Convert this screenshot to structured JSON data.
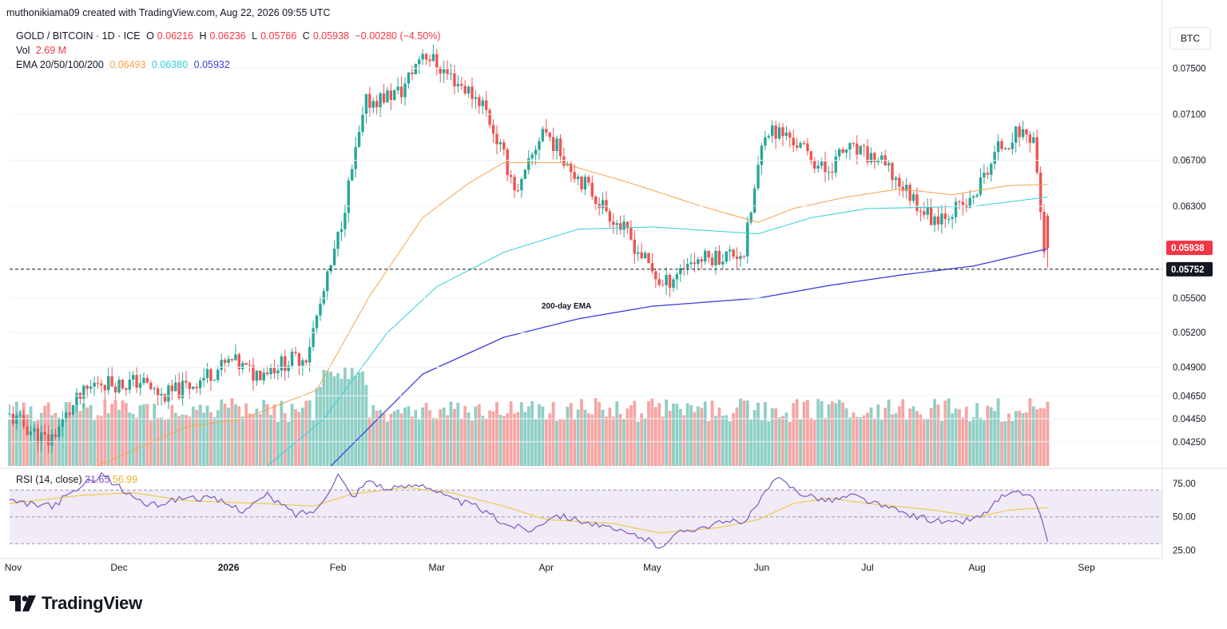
{
  "header": {
    "attribution": "muthonikiama09 created with TradingView.com, Aug 22, 2026 09:55 UTC"
  },
  "legend": {
    "symbol": "GOLD / BITCOIN · 1D · ICE",
    "o_label": "O",
    "o_value": "0.06216",
    "h_label": "H",
    "h_value": "0.06236",
    "l_label": "L",
    "l_value": "0.05766",
    "c_label": "C",
    "c_value": "0.05938",
    "change": "−0.00280 (−4.50%)",
    "vol_label": "Vol",
    "vol_value": "2.69 M",
    "ema_label": "EMA 20/50/100/200",
    "ema_50": "0.06493",
    "ema_100": "0.06380",
    "ema_200": "0.05932"
  },
  "currency_button": "BTC",
  "rsi_legend": {
    "label": "RSI (14, close)",
    "rsi": "31.65",
    "ma": "56.99"
  },
  "brand": {
    "name": "TradingView"
  },
  "colors": {
    "up": "#26a69a",
    "down": "#ef5350",
    "vol_up": "#8fcfc5",
    "vol_down": "#f5a6a4",
    "ema50": "#f7a24a",
    "ema100": "#2fd0d9",
    "ema200": "#3c3de0",
    "rsi": "#7e57c2",
    "rsi_ma": "#f2c94c"
  },
  "chart_data": {
    "type": "candlestick",
    "y_unit": "BTC",
    "ylim": [
      0.0404,
      0.079
    ],
    "y_ticks": [
      "0.07500",
      "0.07100",
      "0.06700",
      "0.06300",
      "0.05500",
      "0.05200",
      "0.04900",
      "0.04650",
      "0.04450",
      "0.04250"
    ],
    "price_labels": {
      "last": "0.05938",
      "crosshair": "0.05752"
    },
    "x_ticks": [
      "Nov",
      "Dec",
      "2026",
      "Feb",
      "Mar",
      "Apr",
      "May",
      "Jun",
      "Jul",
      "Aug",
      "Sep"
    ],
    "annotation": "200-day EMA",
    "series": [
      {
        "name": "EMA 50",
        "waypoints": [
          [
            "2025-11-25",
            0.0404
          ],
          [
            "2025-12-20",
            0.0438
          ],
          [
            "2026-01-05",
            0.0445
          ],
          [
            "2026-01-26",
            0.047
          ],
          [
            "2026-02-10",
            0.0552
          ],
          [
            "2026-02-25",
            0.062
          ],
          [
            "2026-03-10",
            0.065
          ],
          [
            "2026-03-20",
            0.0668
          ],
          [
            "2026-04-05",
            0.0668
          ],
          [
            "2026-04-25",
            0.065
          ],
          [
            "2026-05-15",
            0.063
          ],
          [
            "2026-05-31",
            0.0616
          ],
          [
            "2026-06-10",
            0.0628
          ],
          [
            "2026-06-25",
            0.0638
          ],
          [
            "2026-07-10",
            0.0645
          ],
          [
            "2026-07-25",
            0.064
          ],
          [
            "2026-08-10",
            0.0648
          ],
          [
            "2026-08-21",
            0.0649
          ]
        ]
      },
      {
        "name": "EMA 100",
        "waypoints": [
          [
            "2026-01-12",
            0.0404
          ],
          [
            "2026-01-28",
            0.0445
          ],
          [
            "2026-02-15",
            0.052
          ],
          [
            "2026-03-01",
            0.056
          ],
          [
            "2026-03-20",
            0.059
          ],
          [
            "2026-04-10",
            0.061
          ],
          [
            "2026-05-01",
            0.0612
          ],
          [
            "2026-05-31",
            0.0606
          ],
          [
            "2026-06-15",
            0.062
          ],
          [
            "2026-07-01",
            0.0628
          ],
          [
            "2026-07-31",
            0.063
          ],
          [
            "2026-08-21",
            0.0638
          ]
        ]
      },
      {
        "name": "EMA 200",
        "waypoints": [
          [
            "2026-01-30",
            0.0404
          ],
          [
            "2026-02-25",
            0.0484
          ],
          [
            "2026-03-20",
            0.0516
          ],
          [
            "2026-04-10",
            0.0532
          ],
          [
            "2026-05-01",
            0.0543
          ],
          [
            "2026-05-31",
            0.055
          ],
          [
            "2026-06-20",
            0.0561
          ],
          [
            "2026-07-10",
            0.057
          ],
          [
            "2026-07-31",
            0.0578
          ],
          [
            "2026-08-21",
            0.0593
          ]
        ]
      }
    ],
    "candle_path": [
      [
        "2025-10-31",
        0.0449
      ],
      [
        "2025-11-12",
        0.0425
      ],
      [
        "2025-11-20",
        0.046
      ],
      [
        "2025-11-26",
        0.0478
      ],
      [
        "2025-12-03",
        0.0475
      ],
      [
        "2025-12-08",
        0.0478
      ],
      [
        "2025-12-14",
        0.0464
      ],
      [
        "2025-12-22",
        0.0474
      ],
      [
        "2025-12-28",
        0.0485
      ],
      [
        "2026-01-03",
        0.0495
      ],
      [
        "2026-01-09",
        0.0484
      ],
      [
        "2026-01-16",
        0.0492
      ],
      [
        "2026-01-24",
        0.05
      ],
      [
        "2026-02-01",
        0.0588
      ],
      [
        "2026-02-10",
        0.072
      ],
      [
        "2026-02-20",
        0.073
      ],
      [
        "2026-02-26",
        0.0765
      ],
      [
        "2026-03-05",
        0.0745
      ],
      [
        "2026-03-15",
        0.072
      ],
      [
        "2026-03-25",
        0.064
      ],
      [
        "2026-04-01",
        0.0698
      ],
      [
        "2026-04-10",
        0.066
      ],
      [
        "2026-04-25",
        0.0605
      ],
      [
        "2026-05-05",
        0.056
      ],
      [
        "2026-05-12",
        0.0582
      ],
      [
        "2026-05-28",
        0.059
      ],
      [
        "2026-06-03",
        0.0698
      ],
      [
        "2026-06-10",
        0.069
      ],
      [
        "2026-06-20",
        0.066
      ],
      [
        "2026-06-26",
        0.068
      ],
      [
        "2026-07-05",
        0.067
      ],
      [
        "2026-07-20",
        0.062
      ],
      [
        "2026-07-31",
        0.0632
      ],
      [
        "2026-08-08",
        0.068
      ],
      [
        "2026-08-14",
        0.0695
      ],
      [
        "2026-08-18",
        0.069
      ],
      [
        "2026-08-21",
        0.0594
      ]
    ],
    "candle_range": [
      "2025-10-31",
      "2026-08-21"
    ],
    "last_candle": {
      "date": "2026-08-21",
      "open": 0.06216,
      "high": 0.06236,
      "low": 0.05766,
      "close": 0.05938,
      "volume": "2.69 M"
    },
    "rsi": {
      "type": "line",
      "ylim": [
        20,
        85
      ],
      "y_ticks": [
        "75.00",
        "50.00",
        "25.00"
      ],
      "band": [
        30,
        70
      ],
      "waypoints": [
        [
          "2025-10-31",
          61
        ],
        [
          "2025-11-12",
          58
        ],
        [
          "2025-11-20",
          72
        ],
        [
          "2025-11-26",
          82
        ],
        [
          "2025-12-03",
          68
        ],
        [
          "2025-12-10",
          58
        ],
        [
          "2025-12-20",
          65
        ],
        [
          "2025-12-28",
          63
        ],
        [
          "2026-01-05",
          55
        ],
        [
          "2026-01-12",
          66
        ],
        [
          "2026-01-20",
          52
        ],
        [
          "2026-01-26",
          55
        ],
        [
          "2026-02-01",
          82
        ],
        [
          "2026-02-05",
          65
        ],
        [
          "2026-02-10",
          78
        ],
        [
          "2026-02-15",
          70
        ],
        [
          "2026-02-25",
          75
        ],
        [
          "2026-03-05",
          63
        ],
        [
          "2026-03-12",
          58
        ],
        [
          "2026-03-20",
          45
        ],
        [
          "2026-03-28",
          40
        ],
        [
          "2026-04-03",
          52
        ],
        [
          "2026-04-10",
          48
        ],
        [
          "2026-04-20",
          40
        ],
        [
          "2026-04-28",
          35
        ],
        [
          "2026-05-03",
          28
        ],
        [
          "2026-05-10",
          40
        ],
        [
          "2026-05-20",
          45
        ],
        [
          "2026-05-28",
          48
        ],
        [
          "2026-06-03",
          72
        ],
        [
          "2026-06-06",
          78
        ],
        [
          "2026-06-12",
          68
        ],
        [
          "2026-06-20",
          62
        ],
        [
          "2026-06-27",
          66
        ],
        [
          "2026-07-05",
          58
        ],
        [
          "2026-07-15",
          50
        ],
        [
          "2026-07-25",
          45
        ],
        [
          "2026-08-02",
          50
        ],
        [
          "2026-08-08",
          65
        ],
        [
          "2026-08-14",
          68
        ],
        [
          "2026-08-18",
          60
        ],
        [
          "2026-08-21",
          31.65
        ]
      ],
      "ma_waypoints": [
        [
          "2025-10-31",
          60
        ],
        [
          "2025-11-20",
          66
        ],
        [
          "2025-12-05",
          68
        ],
        [
          "2025-12-20",
          62
        ],
        [
          "2026-01-10",
          60
        ],
        [
          "2026-01-25",
          58
        ],
        [
          "2026-02-05",
          67
        ],
        [
          "2026-02-20",
          72
        ],
        [
          "2026-03-05",
          68
        ],
        [
          "2026-03-20",
          58
        ],
        [
          "2026-04-01",
          48
        ],
        [
          "2026-04-20",
          45
        ],
        [
          "2026-05-03",
          38
        ],
        [
          "2026-05-20",
          42
        ],
        [
          "2026-05-31",
          48
        ],
        [
          "2026-06-10",
          60
        ],
        [
          "2026-06-20",
          64
        ],
        [
          "2026-07-01",
          60
        ],
        [
          "2026-07-20",
          55
        ],
        [
          "2026-08-01",
          50
        ],
        [
          "2026-08-10",
          55
        ],
        [
          "2026-08-21",
          56.99
        ]
      ]
    }
  }
}
